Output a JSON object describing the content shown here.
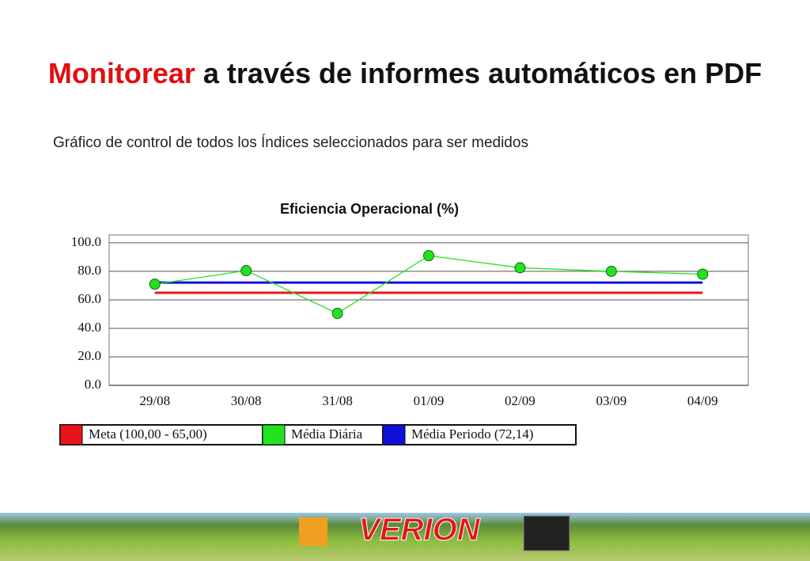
{
  "header": {
    "title_highlight": "Monitorear",
    "title_rest": "a través de informes automáticos en PDF",
    "subtitle": "Gráfico de control de todos los Índices seleccionados para ser medidos"
  },
  "chart_data": {
    "type": "line",
    "title": "Eficiencia Operacional (%)",
    "categories": [
      "29/08",
      "30/08",
      "31/08",
      "01/09",
      "02/09",
      "03/09",
      "04/09"
    ],
    "series": [
      {
        "name": "Meta (100,00 - 65,00)",
        "color": "#e8141c",
        "values": [
          65,
          65,
          65,
          65,
          65,
          65,
          65
        ]
      },
      {
        "name": "Média Diária",
        "color": "#22e322",
        "values": [
          71,
          80.5,
          50.5,
          91,
          82.5,
          80,
          78
        ],
        "markers": true
      },
      {
        "name": "Média Periodo (72,14)",
        "color": "#1010d8",
        "values": [
          72.14,
          72.14,
          72.14,
          72.14,
          72.14,
          72.14,
          72.14
        ]
      }
    ],
    "ylim": [
      0,
      105.5
    ],
    "yticks": [
      {
        "value": 0,
        "label": "0.0"
      },
      {
        "value": 20,
        "label": "20.0"
      },
      {
        "value": 40,
        "label": "40.0"
      },
      {
        "value": 60,
        "label": "60.0"
      },
      {
        "value": 80,
        "label": "80.0"
      },
      {
        "value": 100,
        "label": "100.0"
      }
    ],
    "grid": true
  },
  "footer": {
    "brand": "VERION"
  }
}
